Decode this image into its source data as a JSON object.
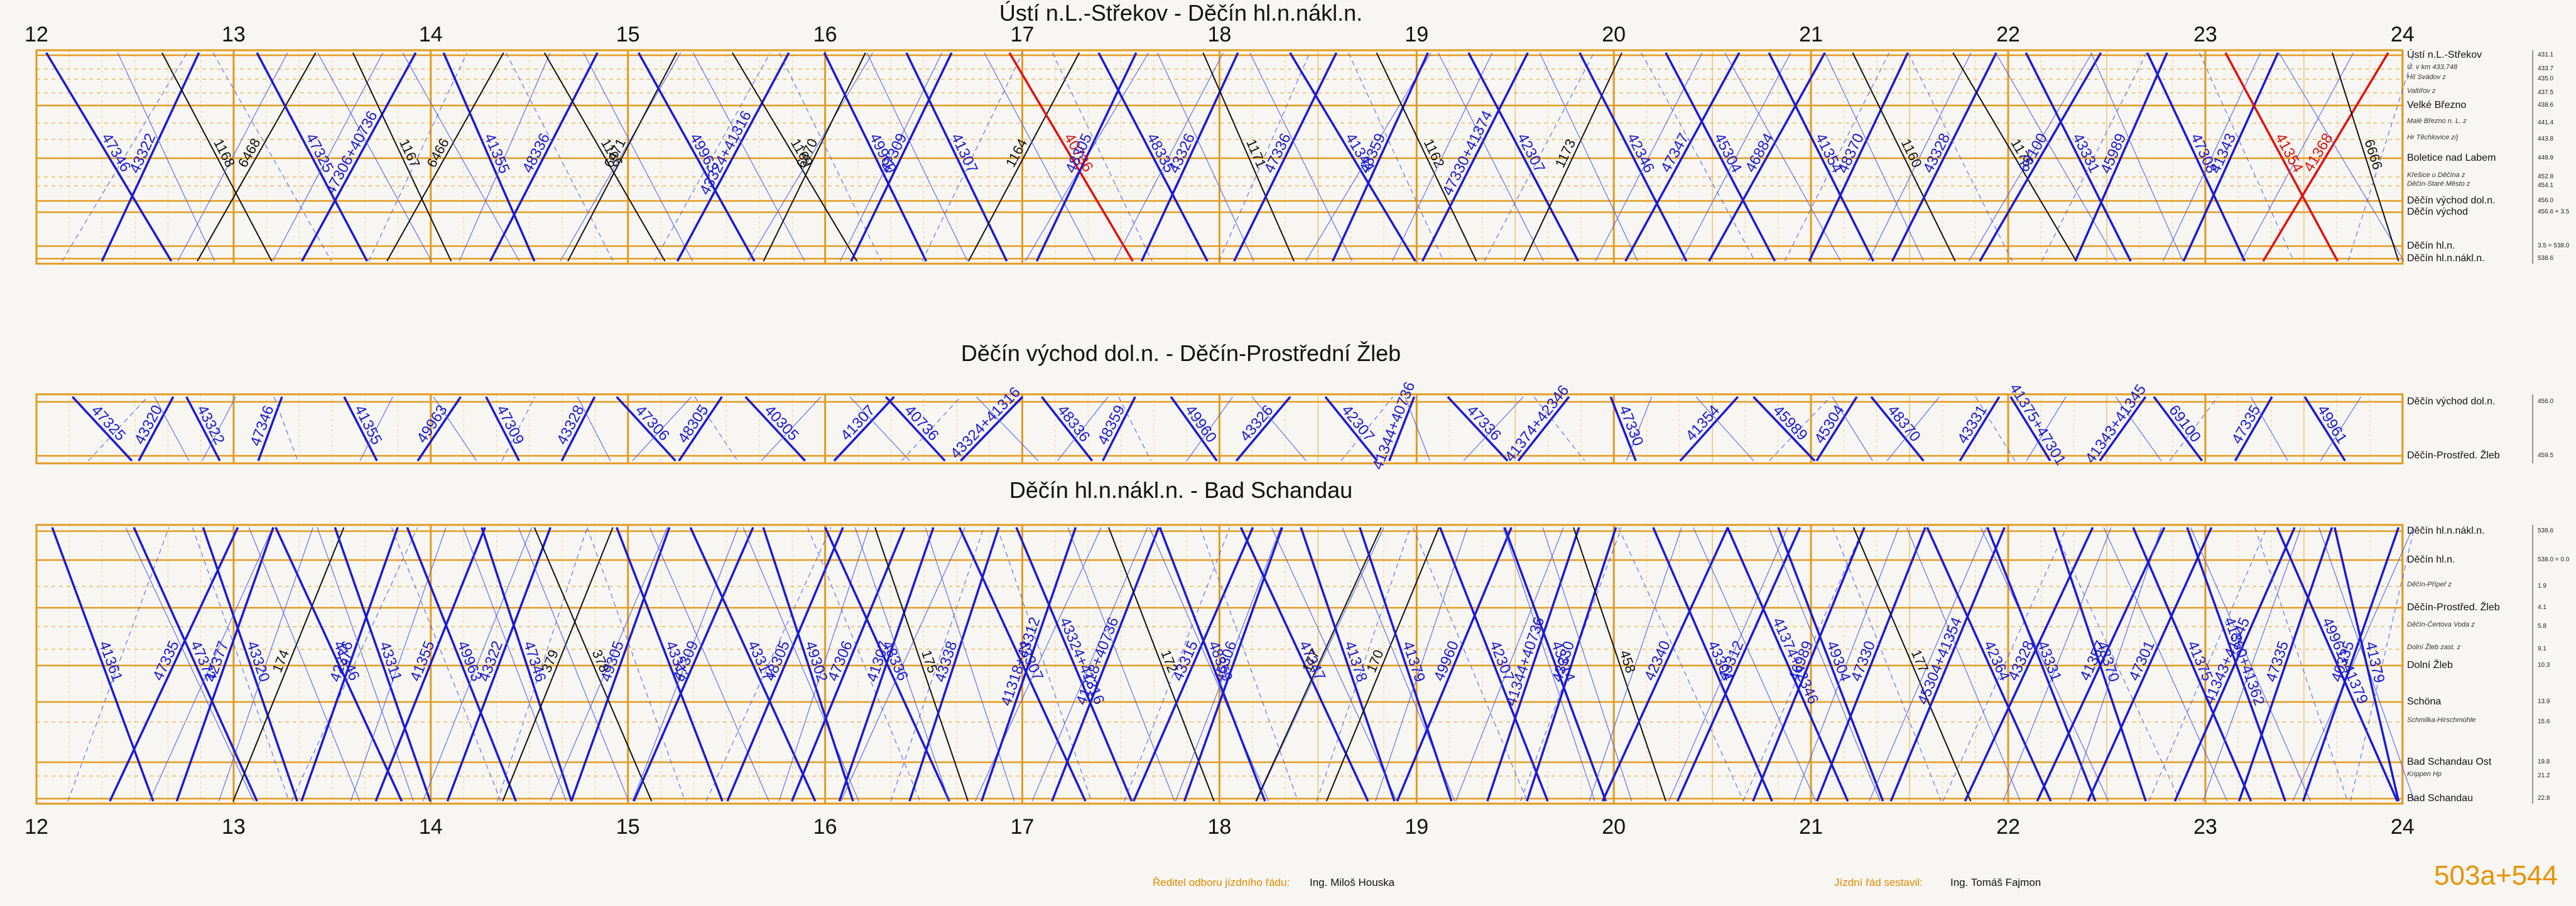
{
  "hours": [
    "12",
    "13",
    "14",
    "15",
    "16",
    "17",
    "18",
    "19",
    "20",
    "21",
    "22",
    "23",
    "24"
  ],
  "panels": [
    {
      "title": "Ústí n.L.-Střekov - Děčín hl.n.nákl.n.",
      "stations": [
        {
          "name": "Ústí n.L.-Střekov",
          "km": "431.1",
          "kind": "major"
        },
        {
          "name": "Ú. v km 433,748",
          "km": "433.7",
          "kind": "minor"
        },
        {
          "name": "Hlí Svádov z",
          "km": "435.0",
          "kind": "minor"
        },
        {
          "name": "Valtířov z",
          "km": "437.5",
          "kind": "minor"
        },
        {
          "name": "Velké Březno",
          "km": "438.6",
          "kind": "major"
        },
        {
          "name": "Malé Březno n. L. z",
          "km": "441.4",
          "kind": "minor"
        },
        {
          "name": "Hr Těchlovice z/j",
          "km": "443.8",
          "kind": "minor"
        },
        {
          "name": "Boletice nad Labem",
          "km": "448.9",
          "kind": "major"
        },
        {
          "name": "Křešice u Děčína z",
          "km": "452.8",
          "kind": "minor"
        },
        {
          "name": "Děčín-Staré Město z",
          "km": "454.1",
          "kind": "minor"
        },
        {
          "name": "Děčín východ dol.n.",
          "km": "456.0",
          "kind": "major"
        },
        {
          "name": "Děčín východ",
          "km": "456.6 + 3.5",
          "kind": "major"
        },
        {
          "name": "Děčín hl.n.",
          "km": "3.5 = 538.0",
          "kind": "major"
        },
        {
          "name": "Děčín hl.n.nákl.n.",
          "km": "538.6",
          "kind": "major"
        }
      ],
      "trains": [
        {
          "n": "47346",
          "c": "blue"
        },
        {
          "n": "43322",
          "c": "blue"
        },
        {
          "n": "1168",
          "c": "black"
        },
        {
          "n": "6468",
          "c": "black"
        },
        {
          "n": "47325",
          "c": "blue"
        },
        {
          "n": "47306+40736",
          "c": "blue"
        },
        {
          "n": "1167",
          "c": "black"
        },
        {
          "n": "6466",
          "c": "black"
        },
        {
          "n": "41355",
          "c": "blue"
        },
        {
          "n": "48336",
          "c": "blue"
        },
        {
          "n": "1166",
          "c": "black"
        },
        {
          "n": "6471",
          "c": "black"
        },
        {
          "n": "49963",
          "c": "blue"
        },
        {
          "n": "43324+41316",
          "c": "blue"
        },
        {
          "n": "1169",
          "c": "black"
        },
        {
          "n": "6470",
          "c": "black"
        },
        {
          "n": "49960",
          "c": "blue"
        },
        {
          "n": "47309",
          "c": "blue"
        },
        {
          "n": "41307",
          "c": "blue"
        },
        {
          "n": "1164",
          "c": "black"
        },
        {
          "n": "40736",
          "c": "red"
        },
        {
          "n": "48305",
          "c": "blue"
        },
        {
          "n": "48335",
          "c": "blue"
        },
        {
          "n": "43326",
          "c": "blue"
        },
        {
          "n": "1171",
          "c": "black"
        },
        {
          "n": "47336",
          "c": "blue"
        },
        {
          "n": "41344",
          "c": "blue"
        },
        {
          "n": "48359",
          "c": "blue"
        },
        {
          "n": "1162",
          "c": "black"
        },
        {
          "n": "47330+41374",
          "c": "blue"
        },
        {
          "n": "42307",
          "c": "blue"
        },
        {
          "n": "1173",
          "c": "black"
        },
        {
          "n": "42346",
          "c": "blue"
        },
        {
          "n": "47347",
          "c": "blue"
        },
        {
          "n": "45304",
          "c": "blue"
        },
        {
          "n": "46884",
          "c": "blue"
        },
        {
          "n": "41354",
          "c": "blue"
        },
        {
          "n": "48370",
          "c": "blue"
        },
        {
          "n": "1160",
          "c": "black"
        },
        {
          "n": "43328",
          "c": "blue"
        },
        {
          "n": "1175",
          "c": "black"
        },
        {
          "n": "69100",
          "c": "blue"
        },
        {
          "n": "43331",
          "c": "blue"
        },
        {
          "n": "45989",
          "c": "blue"
        },
        {
          "n": "47308",
          "c": "blue"
        },
        {
          "n": "41343",
          "c": "blue"
        },
        {
          "n": "41354",
          "c": "red"
        },
        {
          "n": "41368",
          "c": "red"
        },
        {
          "n": "6666",
          "c": "black"
        }
      ]
    },
    {
      "title": "Děčín východ dol.n. - Děčín-Prostřední Žleb",
      "stations": [
        {
          "name": "Děčín východ dol.n.",
          "km": "456.0",
          "kind": "major"
        },
        {
          "name": "Děčín-Prostřed. Žleb",
          "km": "459.5",
          "kind": "major"
        }
      ],
      "trains": [
        {
          "n": "47325",
          "c": "blue"
        },
        {
          "n": "43320",
          "c": "blue"
        },
        {
          "n": "43322",
          "c": "blue"
        },
        {
          "n": "47346",
          "c": "blue"
        },
        {
          "n": "41355",
          "c": "blue"
        },
        {
          "n": "49963",
          "c": "blue"
        },
        {
          "n": "47309",
          "c": "blue"
        },
        {
          "n": "43328",
          "c": "blue"
        },
        {
          "n": "47306",
          "c": "blue"
        },
        {
          "n": "48305",
          "c": "blue"
        },
        {
          "n": "40305",
          "c": "blue"
        },
        {
          "n": "41307",
          "c": "blue"
        },
        {
          "n": "40736",
          "c": "blue"
        },
        {
          "n": "43324+41316",
          "c": "blue"
        },
        {
          "n": "48336",
          "c": "blue"
        },
        {
          "n": "48359",
          "c": "blue"
        },
        {
          "n": "49960",
          "c": "blue"
        },
        {
          "n": "43326",
          "c": "blue"
        },
        {
          "n": "42307",
          "c": "blue"
        },
        {
          "n": "41344+40736",
          "c": "blue"
        },
        {
          "n": "47336",
          "c": "blue"
        },
        {
          "n": "41374+42346",
          "c": "blue"
        },
        {
          "n": "47330",
          "c": "blue"
        },
        {
          "n": "41354",
          "c": "blue"
        },
        {
          "n": "45989",
          "c": "blue"
        },
        {
          "n": "45304",
          "c": "blue"
        },
        {
          "n": "48370",
          "c": "blue"
        },
        {
          "n": "43331",
          "c": "blue"
        },
        {
          "n": "41375+47301",
          "c": "blue"
        },
        {
          "n": "41343+41345",
          "c": "blue"
        },
        {
          "n": "69100",
          "c": "blue"
        },
        {
          "n": "47335",
          "c": "blue"
        },
        {
          "n": "49961",
          "c": "blue"
        }
      ]
    },
    {
      "title": "Děčín hl.n.nákl.n. - Bad Schandau",
      "stations": [
        {
          "name": "Děčín hl.n.nákl.n.",
          "km": "538.6",
          "kind": "major"
        },
        {
          "name": "Děčín hl.n.",
          "km": "538.0 = 0.0",
          "kind": "major"
        },
        {
          "name": "Děčín-Přípeř z",
          "km": "1.9",
          "kind": "minor"
        },
        {
          "name": "Děčín-Prostřed. Žleb",
          "km": "4.1",
          "kind": "major"
        },
        {
          "name": "Děčín-Čertova Voda z",
          "km": "5.8",
          "kind": "minor"
        },
        {
          "name": "Dolní Žleb zast. z",
          "km": "9.1",
          "kind": "minor"
        },
        {
          "name": "Dolní Žleb",
          "km": "10.3",
          "kind": "major"
        },
        {
          "name": "Schöna",
          "km": "13.9",
          "kind": "major"
        },
        {
          "name": "Schmilka-Hirschmühle",
          "km": "15.6",
          "kind": "minor"
        },
        {
          "name": "Bad Schandau Ost",
          "km": "19.8",
          "kind": "major"
        },
        {
          "name": "Krippen Hp",
          "km": "21.2",
          "kind": "minor"
        },
        {
          "name": "Bad Schandau",
          "km": "22.8",
          "kind": "major"
        }
      ],
      "trains": [
        {
          "n": "41361",
          "c": "blue"
        },
        {
          "n": "47335",
          "c": "blue"
        },
        {
          "n": "47372",
          "c": "blue"
        },
        {
          "n": "42377",
          "c": "blue"
        },
        {
          "n": "43320",
          "c": "blue"
        },
        {
          "n": "174",
          "c": "black"
        },
        {
          "n": "41346",
          "c": "blue"
        },
        {
          "n": "42376",
          "c": "blue"
        },
        {
          "n": "43311",
          "c": "blue"
        },
        {
          "n": "41355",
          "c": "blue"
        },
        {
          "n": "49963",
          "c": "blue"
        },
        {
          "n": "43322",
          "c": "blue"
        },
        {
          "n": "47346",
          "c": "blue"
        },
        {
          "n": "379",
          "c": "black"
        },
        {
          "n": "378",
          "c": "black"
        },
        {
          "n": "49305",
          "c": "blue"
        },
        {
          "n": "43313",
          "c": "blue"
        },
        {
          "n": "47309",
          "c": "blue"
        },
        {
          "n": "43317",
          "c": "blue"
        },
        {
          "n": "48305",
          "c": "blue"
        },
        {
          "n": "49302",
          "c": "blue"
        },
        {
          "n": "47306",
          "c": "blue"
        },
        {
          "n": "48336",
          "c": "blue"
        },
        {
          "n": "41307",
          "c": "blue"
        },
        {
          "n": "175",
          "c": "black"
        },
        {
          "n": "43338",
          "c": "blue"
        },
        {
          "n": "43307",
          "c": "blue"
        },
        {
          "n": "41318+43312",
          "c": "blue"
        },
        {
          "n": "43324+41316",
          "c": "blue"
        },
        {
          "n": "41318+40736",
          "c": "blue"
        },
        {
          "n": "172",
          "c": "black"
        },
        {
          "n": "43315",
          "c": "blue"
        },
        {
          "n": "48359",
          "c": "blue"
        },
        {
          "n": "45306",
          "c": "blue"
        },
        {
          "n": "47347",
          "c": "blue"
        },
        {
          "n": "177",
          "c": "black"
        },
        {
          "n": "41378",
          "c": "blue"
        },
        {
          "n": "170",
          "c": "black"
        },
        {
          "n": "41379",
          "c": "blue"
        },
        {
          "n": "49960",
          "c": "blue"
        },
        {
          "n": "42307",
          "c": "blue"
        },
        {
          "n": "41344+40736",
          "c": "blue"
        },
        {
          "n": "43314",
          "c": "blue"
        },
        {
          "n": "43330",
          "c": "blue"
        },
        {
          "n": "458",
          "c": "black"
        },
        {
          "n": "42340",
          "c": "blue"
        },
        {
          "n": "43304",
          "c": "blue"
        },
        {
          "n": "43312",
          "c": "blue"
        },
        {
          "n": "41374+42346",
          "c": "blue"
        },
        {
          "n": "46989",
          "c": "blue"
        },
        {
          "n": "49304",
          "c": "blue"
        },
        {
          "n": "47330",
          "c": "blue"
        },
        {
          "n": "177",
          "c": "black"
        },
        {
          "n": "45304+41354",
          "c": "blue"
        },
        {
          "n": "42364",
          "c": "blue"
        },
        {
          "n": "43328",
          "c": "blue"
        },
        {
          "n": "43331",
          "c": "blue"
        },
        {
          "n": "41357",
          "c": "blue"
        },
        {
          "n": "48370",
          "c": "blue"
        },
        {
          "n": "47301",
          "c": "blue"
        },
        {
          "n": "41375",
          "c": "blue"
        },
        {
          "n": "41343+41345",
          "c": "blue"
        },
        {
          "n": "41360+41362",
          "c": "blue"
        },
        {
          "n": "47335",
          "c": "blue"
        },
        {
          "n": "49961+41379",
          "c": "blue"
        },
        {
          "n": "40335",
          "c": "blue"
        },
        {
          "n": "41379",
          "c": "blue"
        }
      ]
    }
  ],
  "footer": {
    "left_label": "Ředitel odboru jízdního řádu:",
    "left_name": "Ing. Miloš Houska",
    "right_label": "Jízdní řád sestavil:",
    "right_name": "Ing. Tomáš Fajmon",
    "sheet_number": "503a+544"
  },
  "colors": {
    "frame": "#e39a1f",
    "grid_minor": "#e8b14a",
    "freight": "#1a1ad6",
    "freight_thin": "#4a5ae8",
    "passenger": "#111111",
    "special": "#e01010",
    "background": "#f7f6f2"
  }
}
